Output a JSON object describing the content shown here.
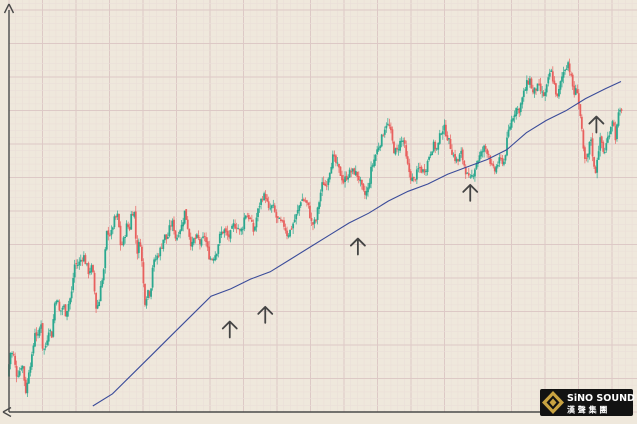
{
  "colors": {
    "background": "#efe8dc",
    "grid_major": "#ddc9c6",
    "grid_minor": "#ebdfd8",
    "up_candle": "#2aa88f",
    "down_candle": "#e8605e",
    "moving_average": "#3b4c9a",
    "arrow": "#444444",
    "axis": "#4a4a4a"
  },
  "logo": {
    "name": "SiNO SOUND",
    "chinese": "漢 聲 集 團",
    "icon": "diamond-emblem-icon"
  },
  "chart_data": {
    "type": "candlestick",
    "title": "",
    "xlabel": "",
    "ylabel": "",
    "grid": true,
    "axes_ticks": false,
    "ylim": [
      0,
      100
    ],
    "price_series": {
      "segments": [
        [
          0,
          12
        ],
        [
          3,
          22
        ],
        [
          6,
          21
        ],
        [
          9,
          13
        ],
        [
          12,
          14
        ],
        [
          15,
          18
        ],
        [
          17,
          11
        ],
        [
          19,
          5
        ],
        [
          22,
          16
        ],
        [
          25,
          20
        ],
        [
          28,
          31
        ],
        [
          31,
          28
        ],
        [
          34,
          35
        ],
        [
          36,
          22
        ],
        [
          39,
          25
        ],
        [
          42,
          32
        ],
        [
          45,
          29
        ],
        [
          48,
          42
        ],
        [
          50,
          45
        ],
        [
          53,
          38
        ],
        [
          55,
          40
        ],
        [
          57,
          41
        ],
        [
          59,
          38
        ],
        [
          62,
          42
        ],
        [
          65,
          46
        ],
        [
          68,
          58
        ],
        [
          72,
          58
        ],
        [
          77,
          62
        ],
        [
          82,
          55
        ],
        [
          86,
          57
        ],
        [
          90,
          40
        ],
        [
          93,
          43
        ],
        [
          94,
          50
        ],
        [
          97,
          52
        ],
        [
          101,
          72
        ],
        [
          105,
          70
        ],
        [
          108,
          76
        ],
        [
          112,
          78
        ],
        [
          115,
          65
        ],
        [
          118,
          68
        ],
        [
          121,
          74
        ],
        [
          124,
          73
        ],
        [
          126,
          80
        ],
        [
          129,
          79
        ],
        [
          131,
          62
        ],
        [
          133,
          66
        ],
        [
          135,
          67
        ],
        [
          139,
          44
        ],
        [
          140,
          42
        ],
        [
          142,
          48
        ],
        [
          144,
          46
        ],
        [
          146,
          50
        ],
        [
          147,
          57
        ],
        [
          150,
          60
        ],
        [
          153,
          62
        ],
        [
          156,
          65
        ],
        [
          159,
          70
        ],
        [
          162,
          68
        ],
        [
          165,
          74
        ],
        [
          168,
          75
        ],
        [
          171,
          68
        ],
        [
          174,
          72
        ],
        [
          177,
          74
        ],
        [
          180,
          80
        ],
        [
          184,
          71
        ],
        [
          187,
          65
        ],
        [
          189,
          68
        ],
        [
          193,
          69
        ],
        [
          196,
          66
        ],
        [
          200,
          70
        ],
        [
          204,
          62
        ],
        [
          207,
          60
        ],
        [
          212,
          63
        ],
        [
          215,
          69
        ],
        [
          217,
          71
        ],
        [
          220,
          72
        ],
        [
          224,
          69
        ],
        [
          227,
          71
        ],
        [
          229,
          74
        ],
        [
          233,
          74
        ],
        [
          236,
          71
        ],
        [
          239,
          74
        ],
        [
          241,
          79
        ],
        [
          246,
          77
        ],
        [
          250,
          71
        ],
        [
          253,
          78
        ],
        [
          256,
          83
        ],
        [
          259,
          86
        ],
        [
          262,
          86
        ],
        [
          265,
          80
        ],
        [
          269,
          82
        ],
        [
          273,
          77
        ],
        [
          277,
          75
        ],
        [
          281,
          74
        ],
        [
          284,
          70
        ],
        [
          287,
          72
        ],
        [
          291,
          76
        ],
        [
          294,
          79
        ],
        [
          298,
          85
        ],
        [
          302,
          84
        ],
        [
          305,
          82
        ],
        [
          309,
          74
        ],
        [
          313,
          76
        ],
        [
          317,
          86
        ],
        [
          320,
          92
        ],
        [
          323,
          90
        ],
        [
          326,
          95
        ],
        [
          330,
          102
        ],
        [
          334,
          99
        ],
        [
          337,
          96
        ],
        [
          341,
          92
        ],
        [
          344,
          94
        ],
        [
          348,
          96
        ],
        [
          352,
          96
        ],
        [
          356,
          94
        ],
        [
          359,
          90
        ],
        [
          362,
          86
        ],
        [
          366,
          89
        ],
        [
          369,
          97
        ],
        [
          372,
          101
        ],
        [
          376,
          106
        ],
        [
          380,
          110
        ],
        [
          384,
          116
        ],
        [
          388,
          114
        ],
        [
          392,
          105
        ],
        [
          395,
          104
        ],
        [
          398,
          108
        ],
        [
          402,
          109
        ],
        [
          405,
          100
        ],
        [
          409,
          94
        ],
        [
          412,
          92
        ],
        [
          415,
          95
        ],
        [
          418,
          98
        ],
        [
          421,
          96
        ],
        [
          425,
          98
        ],
        [
          428,
          103
        ],
        [
          432,
          107
        ],
        [
          436,
          105
        ],
        [
          440,
          113
        ],
        [
          443,
          114
        ],
        [
          445,
          112
        ],
        [
          449,
          107
        ],
        [
          453,
          102
        ],
        [
          457,
          100
        ],
        [
          460,
          104
        ],
        [
          462,
          101
        ],
        [
          466,
          95
        ],
        [
          469,
          92
        ],
        [
          473,
          96
        ],
        [
          476,
          100
        ],
        [
          480,
          103
        ],
        [
          484,
          106
        ],
        [
          488,
          104
        ],
        [
          491,
          98
        ],
        [
          494,
          96
        ],
        [
          497,
          99
        ],
        [
          500,
          101
        ],
        [
          504,
          100
        ],
        [
          508,
          112
        ],
        [
          512,
          118
        ],
        [
          516,
          122
        ],
        [
          519,
          121
        ],
        [
          523,
          127
        ],
        [
          527,
          132
        ],
        [
          530,
          134
        ],
        [
          533,
          128
        ],
        [
          536,
          130
        ],
        [
          539,
          131
        ],
        [
          542,
          128
        ],
        [
          545,
          127
        ],
        [
          548,
          132
        ],
        [
          551,
          138
        ],
        [
          554,
          133
        ],
        [
          558,
          126
        ],
        [
          562,
          134
        ],
        [
          565,
          138
        ],
        [
          569,
          141
        ],
        [
          572,
          134
        ],
        [
          575,
          128
        ],
        [
          578,
          130
        ],
        [
          582,
          116
        ],
        [
          585,
          101
        ],
        [
          588,
          100
        ],
        [
          590,
          106
        ],
        [
          592,
          110
        ],
        [
          594,
          102
        ],
        [
          596,
          94
        ],
        [
          599,
          104
        ],
        [
          602,
          110
        ],
        [
          605,
          103
        ],
        [
          608,
          108
        ],
        [
          611,
          113
        ],
        [
          614,
          118
        ],
        [
          617,
          110
        ],
        [
          620,
          119
        ],
        [
          623,
          122
        ]
      ]
    },
    "moving_average": {
      "name": "",
      "points": [
        [
          85,
          0
        ],
        [
          105,
          5
        ],
        [
          125,
          13
        ],
        [
          145,
          21
        ],
        [
          165,
          29
        ],
        [
          185,
          37
        ],
        [
          205,
          45
        ],
        [
          225,
          48
        ],
        [
          245,
          52
        ],
        [
          265,
          55
        ],
        [
          285,
          60
        ],
        [
          305,
          65
        ],
        [
          325,
          70
        ],
        [
          345,
          75
        ],
        [
          365,
          79
        ],
        [
          385,
          84
        ],
        [
          405,
          88
        ],
        [
          425,
          91
        ],
        [
          445,
          95
        ],
        [
          465,
          98
        ],
        [
          485,
          101
        ],
        [
          505,
          105
        ],
        [
          525,
          112
        ],
        [
          545,
          117
        ],
        [
          565,
          121
        ],
        [
          585,
          126
        ],
        [
          605,
          130
        ],
        [
          621,
          133
        ]
      ]
    },
    "annotations": [
      {
        "type": "up-arrow",
        "x": 224,
        "y": 42
      },
      {
        "type": "up-arrow",
        "x": 260,
        "y": 48
      },
      {
        "type": "up-arrow",
        "x": 354,
        "y": 76
      },
      {
        "type": "up-arrow",
        "x": 468,
        "y": 98
      },
      {
        "type": "up-arrow",
        "x": 596,
        "y": 126
      }
    ]
  }
}
